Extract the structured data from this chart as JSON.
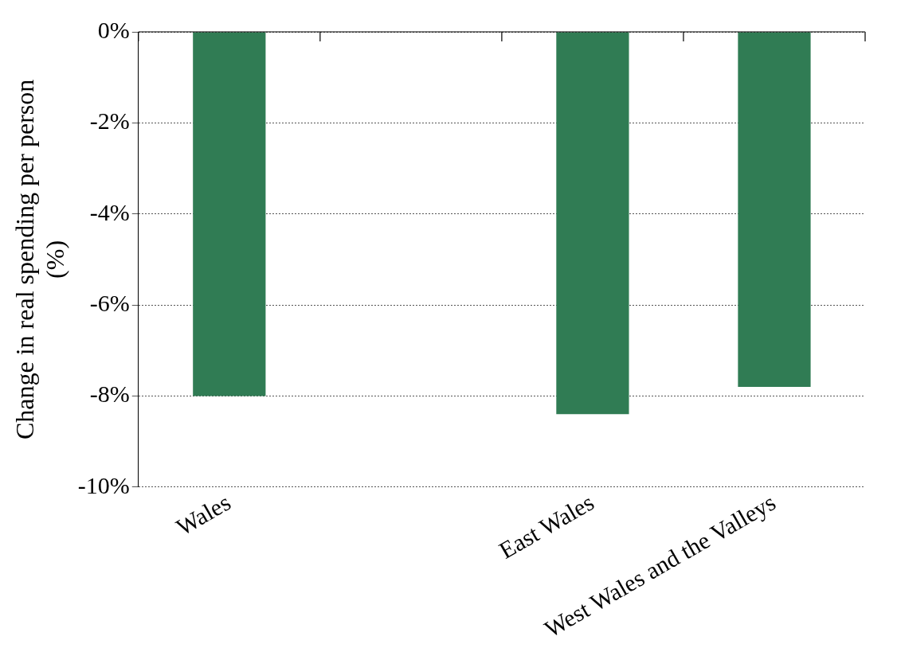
{
  "chart_data": {
    "type": "bar",
    "ylabel": "Change in real spending per person (%)",
    "categories": [
      "Wales",
      null,
      "East Wales",
      "West Wales and the Valleys"
    ],
    "series": [
      {
        "color": "#307c54",
        "values": [
          -8.0,
          null,
          -8.4,
          -7.8
        ]
      }
    ],
    "ylim": [
      -10,
      0
    ],
    "yticks": [
      {
        "value": 0,
        "label": "0%"
      },
      {
        "value": -2,
        "label": "-2%"
      },
      {
        "value": -4,
        "label": "-4%"
      },
      {
        "value": -6,
        "label": "-6%"
      },
      {
        "value": -8,
        "label": "-8%"
      },
      {
        "value": -10,
        "label": "-10%"
      }
    ],
    "grid": "y",
    "legend": false
  }
}
